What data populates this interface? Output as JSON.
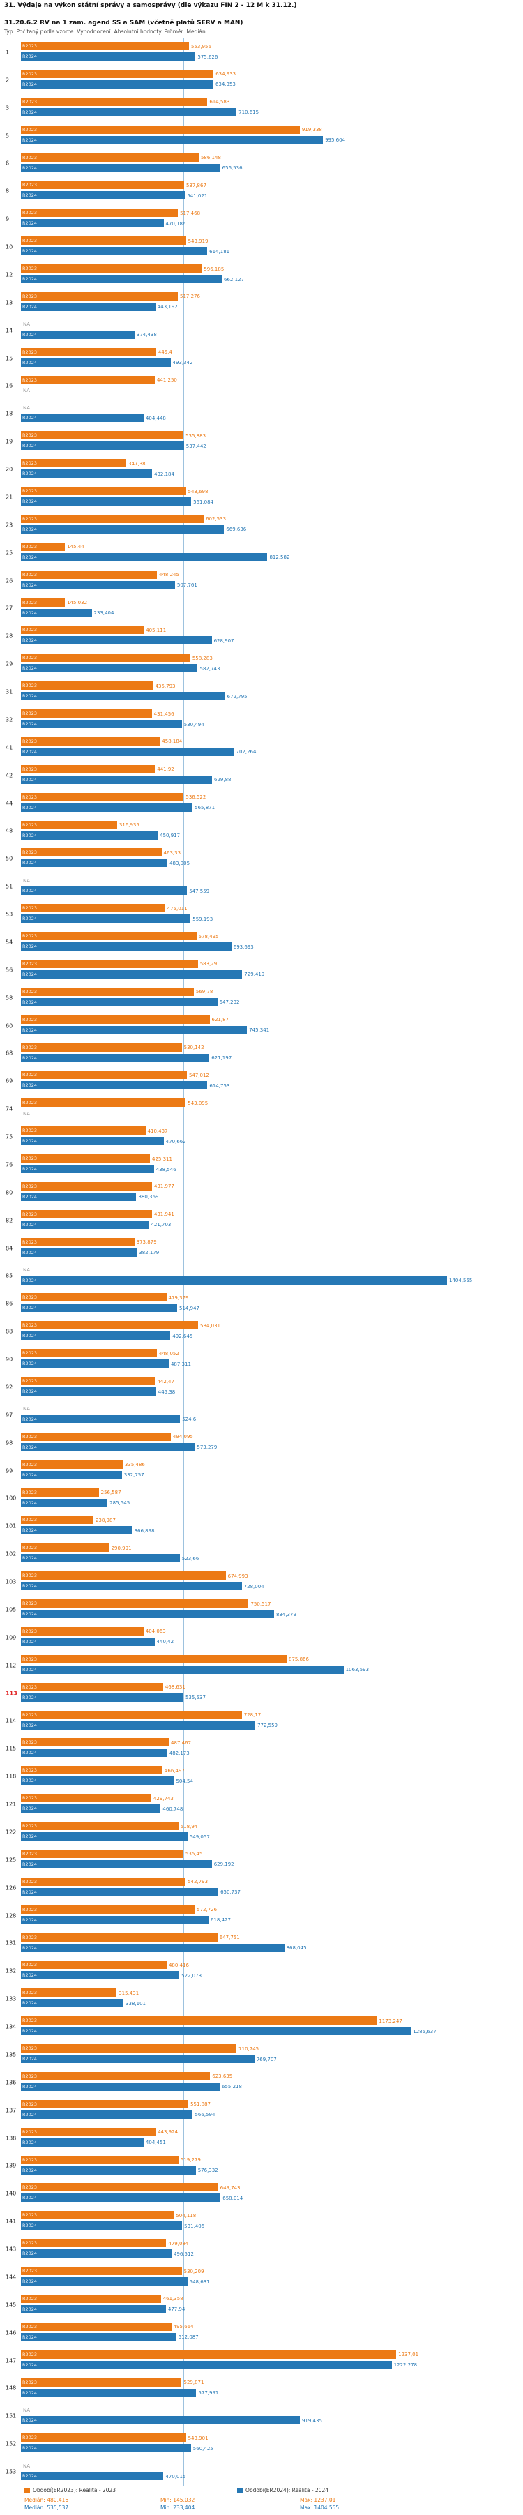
{
  "header": {
    "title": "31. Výdaje na výkon státní správy a samosprávy (dle výkazu FIN 2 - 12 M k 31.12.)",
    "subtitle": "31.20.6.2 RV na 1 zam. agend SS a SAM (včetně platů SERV a MAN)",
    "meta": "Typ: Počítaný podle vzorce. Vyhodnocení: Absolutní hodnoty. Průměr: Medián"
  },
  "colors": {
    "r2023": "#ec7a15",
    "r2024": "#2678b5",
    "highlight": "#e02020"
  },
  "chart_data": {
    "type": "bar",
    "orientation": "horizontal",
    "title": "31. Výdaje na výkon státní správy a samosprávy (dle výkazu FIN 2 - 12 M k 31.12.)",
    "subtitle": "31.20.6.2 RV na 1 zam. agend SS a SAM (včetně platů SERV a MAN)",
    "na_label": "NA",
    "highlighted_row": "113",
    "xlim": [
      0,
      1450
    ],
    "series": [
      {
        "key": "r2023",
        "bar_label": "R2023",
        "color": "#ec7a15",
        "legend": "Období(ER2023): Realita - 2023",
        "median": 480.416,
        "median_text": "Medián: 480,416",
        "min_text": "Min: 145,032",
        "max_text": "Max: 1237,01"
      },
      {
        "key": "r2024",
        "bar_label": "R2024",
        "color": "#2678b5",
        "legend": "Období(ER2024): Realita - 2024",
        "median": 535.537,
        "median_text": "Medián: 535,537",
        "min_text": "Min: 233,404",
        "max_text": "Max: 1404,555"
      }
    ],
    "rows": [
      {
        "id": "1",
        "r2023": "553,956",
        "r2024": "575,626"
      },
      {
        "id": "2",
        "r2023": "634,933",
        "r2024": "634,353"
      },
      {
        "id": "3",
        "r2023": "614,583",
        "r2024": "710,615"
      },
      {
        "id": "5",
        "r2023": "919,338",
        "r2024": "995,604"
      },
      {
        "id": "6",
        "r2023": "586,148",
        "r2024": "656,536"
      },
      {
        "id": "8",
        "r2023": "537,867",
        "r2024": "541,021"
      },
      {
        "id": "9",
        "r2023": "517,468",
        "r2024": "470,186"
      },
      {
        "id": "10",
        "r2023": "543,919",
        "r2024": "614,181"
      },
      {
        "id": "12",
        "r2023": "596,185",
        "r2024": "662,127"
      },
      {
        "id": "13",
        "r2023": "517,276",
        "r2024": "443,192"
      },
      {
        "id": "14",
        "r2023": "NA",
        "r2024": "374,438"
      },
      {
        "id": "15",
        "r2023": "445,4",
        "r2024": "493,342"
      },
      {
        "id": "16",
        "r2023": "441,250",
        "r2024": "NA"
      },
      {
        "id": "18",
        "r2023": "NA",
        "r2024": "404,448"
      },
      {
        "id": "19",
        "r2023": "535,883",
        "r2024": "537,442"
      },
      {
        "id": "20",
        "r2023": "347,38",
        "r2024": "432,184"
      },
      {
        "id": "21",
        "r2023": "543,698",
        "r2024": "561,084"
      },
      {
        "id": "23",
        "r2023": "602,533",
        "r2024": "669,636"
      },
      {
        "id": "25",
        "r2023": "145,44",
        "r2024": "812,582"
      },
      {
        "id": "26",
        "r2023": "448,245",
        "r2024": "507,761"
      },
      {
        "id": "27",
        "r2023": "145,032",
        "r2024": "233,404"
      },
      {
        "id": "28",
        "r2023": "405,111",
        "r2024": "628,907"
      },
      {
        "id": "29",
        "r2023": "558,283",
        "r2024": "582,743"
      },
      {
        "id": "31",
        "r2023": "435,793",
        "r2024": "672,795"
      },
      {
        "id": "32",
        "r2023": "431,456",
        "r2024": "530,494"
      },
      {
        "id": "41",
        "r2023": "458,184",
        "r2024": "702,264"
      },
      {
        "id": "42",
        "r2023": "441,92",
        "r2024": "629,88"
      },
      {
        "id": "44",
        "r2023": "536,522",
        "r2024": "565,871"
      },
      {
        "id": "48",
        "r2023": "316,935",
        "r2024": "450,917"
      },
      {
        "id": "50",
        "r2023": "463,33",
        "r2024": "483,005"
      },
      {
        "id": "51",
        "r2023": "NA",
        "r2024": "547,559"
      },
      {
        "id": "53",
        "r2023": "475,011",
        "r2024": "559,193"
      },
      {
        "id": "54",
        "r2023": "578,495",
        "r2024": "693,693"
      },
      {
        "id": "56",
        "r2023": "583,29",
        "r2024": "729,419"
      },
      {
        "id": "58",
        "r2023": "569,78",
        "r2024": "647,232"
      },
      {
        "id": "60",
        "r2023": "621,87",
        "r2024": "745,341"
      },
      {
        "id": "68",
        "r2023": "530,142",
        "r2024": "621,197"
      },
      {
        "id": "69",
        "r2023": "547,012",
        "r2024": "614,753"
      },
      {
        "id": "74",
        "r2023": "543,095",
        "r2024": "NA"
      },
      {
        "id": "75",
        "r2023": "410,437",
        "r2024": "470,662"
      },
      {
        "id": "76",
        "r2023": "425,311",
        "r2024": "438,546"
      },
      {
        "id": "80",
        "r2023": "431,977",
        "r2024": "380,369"
      },
      {
        "id": "82",
        "r2023": "431,941",
        "r2024": "421,703"
      },
      {
        "id": "84",
        "r2023": "373,879",
        "r2024": "382,179"
      },
      {
        "id": "85",
        "r2023": "NA",
        "r2024": "1404,555"
      },
      {
        "id": "86",
        "r2023": "479,379",
        "r2024": "514,947"
      },
      {
        "id": "88",
        "r2023": "584,031",
        "r2024": "492,645"
      },
      {
        "id": "90",
        "r2023": "448,052",
        "r2024": "487,311"
      },
      {
        "id": "92",
        "r2023": "442,47",
        "r2024": "445,38"
      },
      {
        "id": "97",
        "r2023": "NA",
        "r2024": "524,6"
      },
      {
        "id": "98",
        "r2023": "494,095",
        "r2024": "573,279"
      },
      {
        "id": "99",
        "r2023": "335,486",
        "r2024": "332,757"
      },
      {
        "id": "100",
        "r2023": "256,587",
        "r2024": "285,545"
      },
      {
        "id": "101",
        "r2023": "238,987",
        "r2024": "366,898"
      },
      {
        "id": "102",
        "r2023": "290,991",
        "r2024": "523,66"
      },
      {
        "id": "103",
        "r2023": "674,993",
        "r2024": "728,004"
      },
      {
        "id": "105",
        "r2023": "750,517",
        "r2024": "834,379"
      },
      {
        "id": "109",
        "r2023": "404,063",
        "r2024": "440,42"
      },
      {
        "id": "112",
        "r2023": "875,866",
        "r2024": "1063,593"
      },
      {
        "id": "113",
        "r2023": "468,631",
        "r2024": "535,537"
      },
      {
        "id": "114",
        "r2023": "728,17",
        "r2024": "772,559"
      },
      {
        "id": "115",
        "r2023": "487,467",
        "r2024": "482,173"
      },
      {
        "id": "118",
        "r2023": "466,497",
        "r2024": "504,54"
      },
      {
        "id": "121",
        "r2023": "429,743",
        "r2024": "460,748"
      },
      {
        "id": "122",
        "r2023": "518,94",
        "r2024": "549,057"
      },
      {
        "id": "125",
        "r2023": "535,45",
        "r2024": "629,192"
      },
      {
        "id": "126",
        "r2023": "542,793",
        "r2024": "650,737"
      },
      {
        "id": "128",
        "r2023": "572,726",
        "r2024": "618,427"
      },
      {
        "id": "131",
        "r2023": "647,751",
        "r2024": "868,045"
      },
      {
        "id": "132",
        "r2023": "480,416",
        "r2024": "522,073"
      },
      {
        "id": "133",
        "r2023": "315,431",
        "r2024": "338,101"
      },
      {
        "id": "134",
        "r2023": "1173,247",
        "r2024": "1285,637"
      },
      {
        "id": "135",
        "r2023": "710,745",
        "r2024": "769,707"
      },
      {
        "id": "136",
        "r2023": "623,635",
        "r2024": "655,218"
      },
      {
        "id": "137",
        "r2023": "551,887",
        "r2024": "566,594"
      },
      {
        "id": "138",
        "r2023": "443,924",
        "r2024": "404,451"
      },
      {
        "id": "139",
        "r2023": "519,279",
        "r2024": "576,332"
      },
      {
        "id": "140",
        "r2023": "649,743",
        "r2024": "658,014"
      },
      {
        "id": "141",
        "r2023": "504,118",
        "r2024": "531,406"
      },
      {
        "id": "143",
        "r2023": "479,084",
        "r2024": "496,512"
      },
      {
        "id": "144",
        "r2023": "530,209",
        "r2024": "548,631"
      },
      {
        "id": "145",
        "r2023": "461,358",
        "r2024": "477,94"
      },
      {
        "id": "146",
        "r2023": "495,664",
        "r2024": "512,087"
      },
      {
        "id": "147",
        "r2023": "1237,01",
        "r2024": "1222,278"
      },
      {
        "id": "148",
        "r2023": "529,871",
        "r2024": "577,991"
      },
      {
        "id": "151",
        "r2023": "NA",
        "r2024": "919,435"
      },
      {
        "id": "152",
        "r2023": "543,901",
        "r2024": "560,425"
      },
      {
        "id": "153",
        "r2023": "NA",
        "r2024": "470,015"
      }
    ]
  },
  "footer": {
    "legend_2023": "Období(ER2023): Realita - 2023",
    "legend_2024": "Období(ER2024): Realita - 2024"
  }
}
